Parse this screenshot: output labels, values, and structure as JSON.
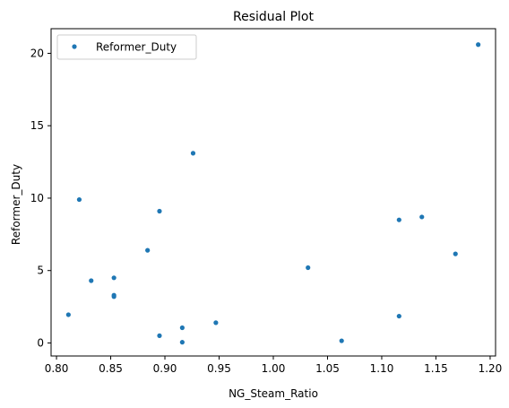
{
  "chart_data": {
    "type": "scatter",
    "title": "Residual Plot",
    "xlabel": "NG_Steam_Ratio",
    "ylabel": "Reformer_Duty",
    "xlim": [
      0.795,
      1.205
    ],
    "ylim": [
      -0.9,
      21.7
    ],
    "xticks": [
      0.8,
      0.85,
      0.9,
      0.95,
      1.0,
      1.05,
      1.1,
      1.15,
      1.2
    ],
    "xtick_labels": [
      "0.80",
      "0.85",
      "0.90",
      "0.95",
      "1.00",
      "1.05",
      "1.10",
      "1.15",
      "1.20"
    ],
    "yticks": [
      0,
      5,
      10,
      15,
      20
    ],
    "ytick_labels": [
      "0",
      "5",
      "10",
      "15",
      "20"
    ],
    "grid": false,
    "legend_position": "top-left",
    "series": [
      {
        "name": "Reformer_Duty",
        "color": "#1f77b4",
        "points": [
          {
            "x": 0.811,
            "y": 1.95
          },
          {
            "x": 0.821,
            "y": 9.9
          },
          {
            "x": 0.832,
            "y": 4.3
          },
          {
            "x": 0.853,
            "y": 4.5
          },
          {
            "x": 0.853,
            "y": 3.3
          },
          {
            "x": 0.853,
            "y": 3.2
          },
          {
            "x": 0.884,
            "y": 6.4
          },
          {
            "x": 0.895,
            "y": 9.1
          },
          {
            "x": 0.895,
            "y": 0.5
          },
          {
            "x": 0.916,
            "y": 1.05
          },
          {
            "x": 0.916,
            "y": 0.05
          },
          {
            "x": 0.926,
            "y": 13.1
          },
          {
            "x": 0.947,
            "y": 1.4
          },
          {
            "x": 1.032,
            "y": 5.2
          },
          {
            "x": 1.063,
            "y": 0.15
          },
          {
            "x": 1.116,
            "y": 8.5
          },
          {
            "x": 1.116,
            "y": 1.85
          },
          {
            "x": 1.137,
            "y": 8.7
          },
          {
            "x": 1.168,
            "y": 6.15
          },
          {
            "x": 1.189,
            "y": 20.6
          }
        ]
      }
    ]
  }
}
